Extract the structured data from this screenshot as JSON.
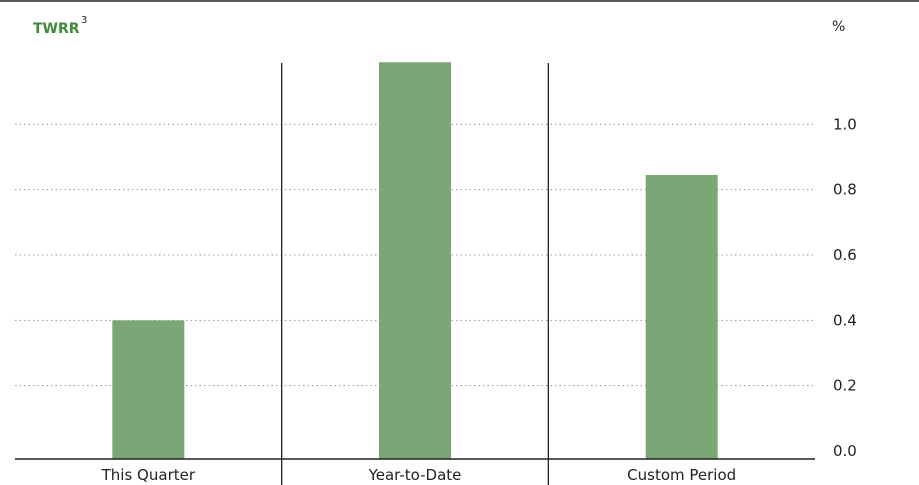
{
  "chart_data": {
    "type": "bar",
    "title": "TWRR",
    "title_superscript": "3",
    "unit_label": "%",
    "categories": [
      "This Quarter",
      "Year-to-Date",
      "Custom Period"
    ],
    "values": [
      0.4,
      1.19,
      0.845
    ],
    "ylim": [
      0,
      1.2
    ],
    "yticks": [
      "0.0",
      "0.2",
      "0.4",
      "0.6",
      "0.8",
      "1.0"
    ],
    "grid": "horizontal dotted",
    "bar_color": "#7ba776",
    "title_color": "#3f8a3a",
    "axis_side": "right"
  }
}
